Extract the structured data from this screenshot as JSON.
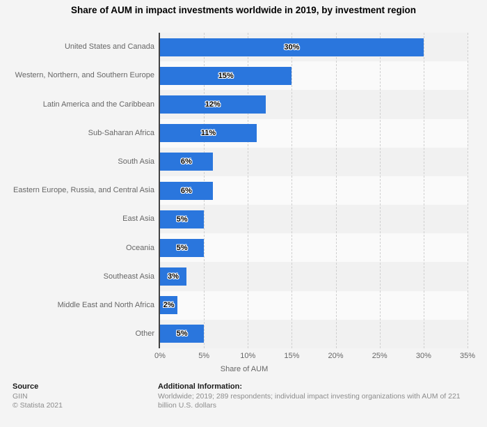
{
  "chart_data": {
    "type": "bar",
    "orientation": "horizontal",
    "title": "Share of AUM in impact investments worldwide in 2019, by investment region",
    "categories": [
      "United States and Canada",
      "Western, Northern, and Southern Europe",
      "Latin America and the Caribbean",
      "Sub-Saharan Africa",
      "South Asia",
      "Eastern Europe, Russia, and Central Asia",
      "East Asia",
      "Oceania",
      "Southeast Asia",
      "Middle East and North Africa",
      "Other"
    ],
    "values": [
      30,
      15,
      12,
      11,
      6,
      6,
      5,
      5,
      3,
      2,
      5
    ],
    "value_labels": [
      "30%",
      "15%",
      "12%",
      "11%",
      "6%",
      "6%",
      "5%",
      "5%",
      "3%",
      "2%",
      "5%"
    ],
    "xlabel": "Share of AUM",
    "xlim": [
      0,
      35
    ],
    "x_tick_step": 5,
    "x_tick_labels": [
      "0%",
      "5%",
      "10%",
      "15%",
      "20%",
      "25%",
      "30%",
      "35%"
    ],
    "grid": "vertical-dashed",
    "legend": false
  },
  "footer": {
    "source_label": "Source",
    "source_name": "GIIN",
    "copyright": "© Statista 2021",
    "additional_label": "Additional Information:",
    "additional_text": "Worldwide; 2019; 289 respondents; individual impact investing organizations with AUM of 221 billion U.S. dollars"
  },
  "colors": {
    "bar": "#2a76dd",
    "band_odd": "#f1f1f1",
    "band_even": "#fafafa",
    "background": "#f4f4f4",
    "gridline": "#cfcfcf",
    "axis_line": "#434343",
    "chart_text": "#666666",
    "title_text": "#000000"
  }
}
